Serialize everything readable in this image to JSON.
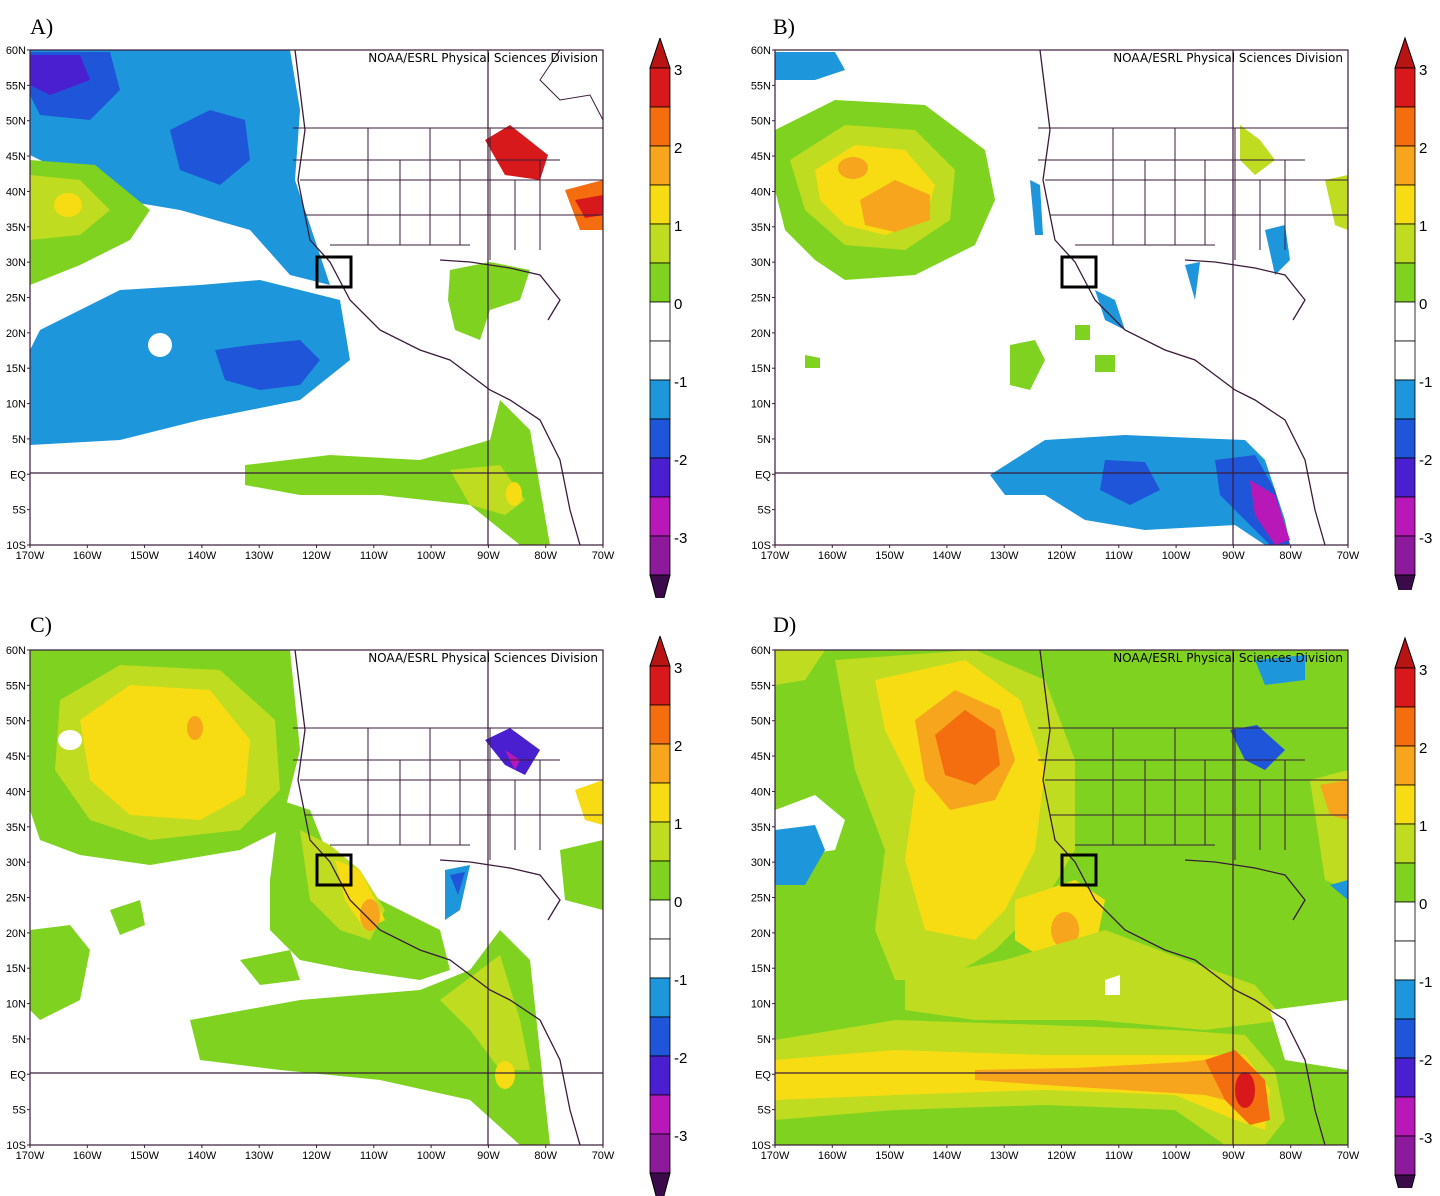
{
  "panels": [
    {
      "id": "A",
      "letter": "A)"
    },
    {
      "id": "B",
      "letter": "B)"
    },
    {
      "id": "C",
      "letter": "C)"
    },
    {
      "id": "D",
      "letter": "D)"
    }
  ],
  "credit": "NOAA/ESRL Physical Sciences Division",
  "axes": {
    "lat_labels": [
      "60N",
      "55N",
      "50N",
      "45N",
      "40N",
      "35N",
      "30N",
      "25N",
      "20N",
      "15N",
      "10N",
      "5N",
      "EQ",
      "5S",
      "10S"
    ],
    "lon_labels": [
      "170W",
      "160W",
      "150W",
      "140W",
      "130W",
      "120W",
      "110W",
      "100W",
      "90W",
      "80W",
      "70W"
    ]
  },
  "colorbar": {
    "labels": [
      "3",
      "2",
      "1",
      "0",
      "-1",
      "-2",
      "-3"
    ],
    "colors": [
      "#d7191c",
      "#f46d0f",
      "#f7a51c",
      "#f7dc13",
      "#bfdc20",
      "#7fd320",
      "#ffffff",
      "#ffffff",
      "#1e96dc",
      "#1f55d8",
      "#4a1fd0",
      "#b818b8",
      "#8c1a9a"
    ]
  }
}
